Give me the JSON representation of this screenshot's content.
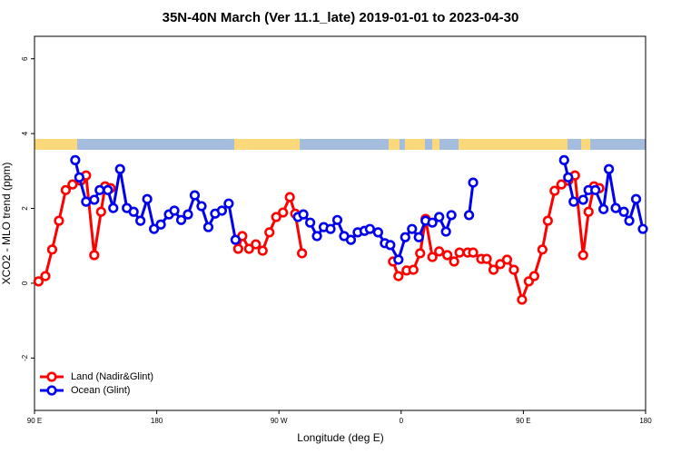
{
  "chart_data": {
    "type": "line",
    "title": "35N-40N March (Ver 11.1_late)   2019-01-01 to 2023-04-30",
    "x_label": "Longitude (deg E)",
    "y_label": "XCO2 - MLO trend (ppm)",
    "xlim": [
      90,
      540
    ],
    "xticks": [
      {
        "value": 90,
        "label": "90 E"
      },
      {
        "value": 180,
        "label": "180"
      },
      {
        "value": 270,
        "label": "90 W"
      },
      {
        "value": 360,
        "label": "0"
      },
      {
        "value": 450,
        "label": "90 E"
      },
      {
        "value": 540,
        "label": "180"
      }
    ],
    "ylim": [
      -3.4,
      6.6
    ],
    "yticks": [
      -2,
      0,
      2,
      4,
      6
    ],
    "legend": "bottom-left",
    "series": [
      {
        "name": "Land (Nadir&Glint)",
        "color": "#ff0000",
        "x": [
          93,
          98,
          103,
          108,
          113,
          118,
          124,
          128,
          134,
          139,
          142,
          146,
          null,
          240,
          243,
          248,
          253,
          258,
          263,
          268,
          273,
          278,
          282,
          287,
          null,
          354,
          358,
          364,
          369,
          374,
          378,
          383,
          388,
          394,
          399,
          403,
          409,
          413,
          419,
          423,
          428,
          433,
          438,
          443,
          449,
          454,
          458,
          464,
          468,
          473,
          478,
          483,
          488,
          494,
          498,
          502,
          506
        ],
        "values": [
          0.05,
          0.19,
          0.9,
          1.67,
          2.49,
          2.64,
          2.74,
          2.88,
          0.75,
          1.91,
          2.59,
          2.54,
          null,
          0.92,
          1.26,
          0.92,
          1.04,
          0.87,
          1.36,
          1.77,
          1.89,
          2.3,
          1.86,
          0.8,
          null,
          0.58,
          0.19,
          0.34,
          0.36,
          0.8,
          1.72,
          0.7,
          0.85,
          0.75,
          0.58,
          0.82,
          0.82,
          0.82,
          0.65,
          0.65,
          0.36,
          0.51,
          0.63,
          0.36,
          -0.44,
          0.05,
          0.19,
          0.9,
          1.67,
          2.47,
          2.64,
          2.74,
          2.88,
          0.75,
          1.91,
          2.59,
          2.54
        ]
      },
      {
        "name": "Ocean (Glint)",
        "color": "#0000ee",
        "x": [
          120,
          123,
          128,
          134,
          138,
          144,
          148,
          153,
          158,
          163,
          168,
          173,
          178,
          183,
          189,
          193,
          198,
          203,
          208,
          213,
          218,
          223,
          228,
          233,
          238,
          null,
          284,
          288,
          293,
          298,
          303,
          308,
          313,
          318,
          323,
          328,
          333,
          337,
          343,
          348,
          352,
          358,
          363,
          368,
          373,
          378,
          383,
          388,
          393,
          397,
          null,
          410,
          413,
          null,
          480,
          483,
          487,
          494,
          498,
          503,
          509,
          513,
          518,
          524,
          528,
          533,
          538
        ],
        "values": [
          3.29,
          2.83,
          2.18,
          2.23,
          2.49,
          2.49,
          2.01,
          3.05,
          2.01,
          1.91,
          1.67,
          2.25,
          1.45,
          1.57,
          1.84,
          1.94,
          1.69,
          1.84,
          2.35,
          2.06,
          1.5,
          1.86,
          1.94,
          2.13,
          1.16,
          null,
          1.77,
          1.84,
          1.62,
          1.26,
          1.5,
          1.45,
          1.69,
          1.26,
          1.16,
          1.36,
          1.4,
          1.45,
          1.36,
          1.07,
          1.02,
          0.63,
          1.23,
          1.45,
          1.23,
          1.67,
          1.62,
          1.77,
          1.38,
          1.82,
          null,
          1.82,
          2.69,
          null,
          3.29,
          2.83,
          2.18,
          2.23,
          2.49,
          2.49,
          1.98,
          3.05,
          2.01,
          1.91,
          1.67,
          2.25,
          1.45
        ]
      }
    ]
  }
}
